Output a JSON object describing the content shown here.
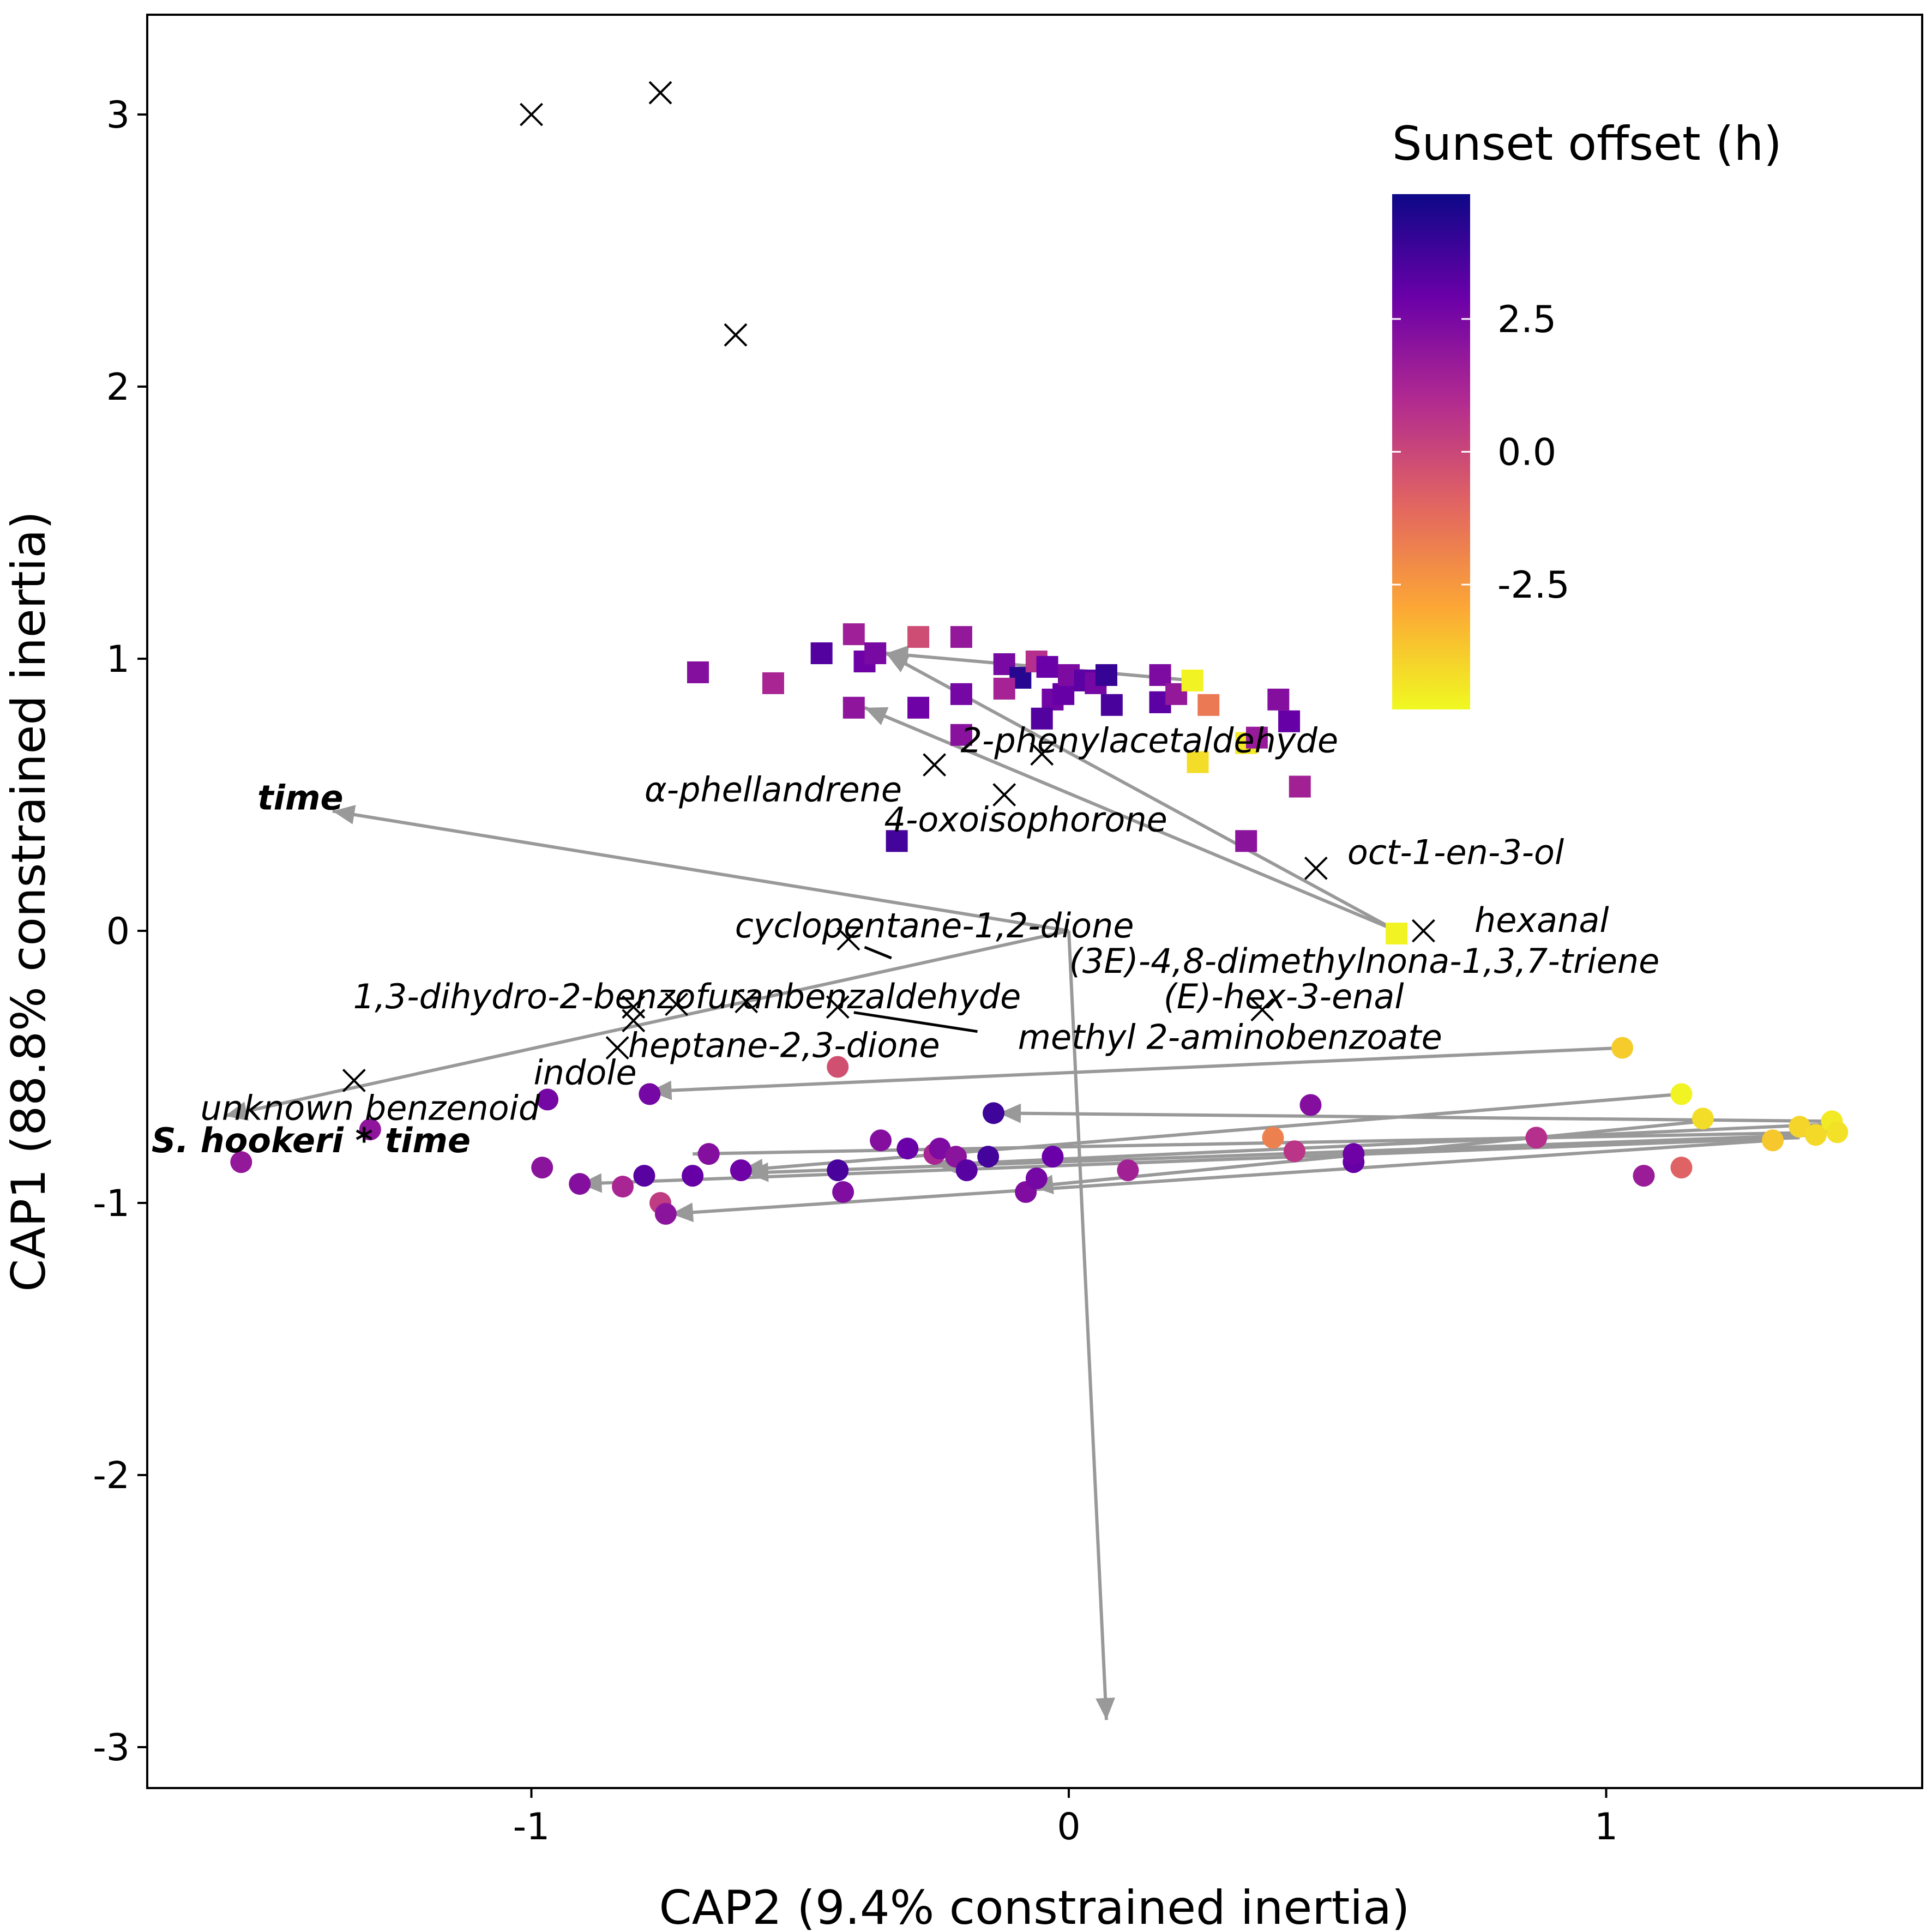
{
  "chart_data": {
    "type": "scatter",
    "title": "",
    "xlabel": "CAP2 (9.4% constrained inertia)",
    "ylabel": "CAP1 (88.8% constrained inertia)",
    "xlim": [
      -1.72,
      1.6
    ],
    "ylim": [
      -3.3,
      3.35
    ],
    "x_ticks": [
      -1,
      0,
      1
    ],
    "y_ticks": [
      -3,
      -2,
      -1,
      0,
      1,
      2,
      3
    ],
    "x_tick_labels": [
      "-1",
      "0",
      "1"
    ],
    "y_tick_labels": [
      "-3",
      "-2",
      "-1",
      "0",
      "1",
      "2",
      "3"
    ],
    "grid": false,
    "legend": {
      "title": "Sunset offset (h)",
      "position": "top-right",
      "min": -4.85,
      "max": 4.85,
      "ticks": [
        2.5,
        0.0,
        -2.5
      ],
      "tick_labels": [
        "2.5",
        "0.0",
        "-2.5"
      ],
      "colors": [
        "#f0f921",
        "#fca636",
        "#e16462",
        "#b12a90",
        "#6a00a8",
        "#0d0887"
      ]
    },
    "compound_markers": [
      [
        -1.0,
        3.0
      ],
      [
        -0.76,
        3.08
      ],
      [
        -0.62,
        2.19
      ],
      [
        -0.25,
        0.61
      ],
      [
        -0.05,
        0.65
      ],
      [
        -0.12,
        0.5
      ],
      [
        0.46,
        0.23
      ],
      [
        0.66,
        0.0
      ],
      [
        0.36,
        -0.29
      ],
      [
        -0.41,
        -0.03
      ],
      [
        -0.43,
        -0.28
      ],
      [
        -0.6,
        -0.26
      ],
      [
        -0.73,
        -0.27
      ],
      [
        -0.81,
        -0.28
      ],
      [
        -0.81,
        -0.33
      ],
      [
        -0.84,
        -0.43
      ],
      [
        -1.33,
        -0.55
      ]
    ],
    "compound_labels": [
      {
        "text": "2-phenylacetaldehyde",
        "x": 0.15,
        "y": 0.7
      },
      {
        "text": "α-phellandrene",
        "x": -0.55,
        "y": 0.52
      },
      {
        "text": "4-oxoisophorone",
        "x": -0.08,
        "y": 0.41
      },
      {
        "text": "oct-1-en-3-ol",
        "x": 0.72,
        "y": 0.29
      },
      {
        "text": "hexanal",
        "x": 0.88,
        "y": 0.04
      },
      {
        "text": "cyclopentane-1,2-dione",
        "x": -0.25,
        "y": 0.02
      },
      {
        "text": "(3E)-4,8-dimethylnona-1,3,7-triene",
        "x": 0.55,
        "y": -0.11
      },
      {
        "text": "1,3-dihydro-2-benzofuran",
        "x": -0.93,
        "y": -0.24
      },
      {
        "text": "benzaldehyde",
        "x": -0.31,
        "y": -0.24
      },
      {
        "text": "(E)-hex-3-enal",
        "x": 0.4,
        "y": -0.24
      },
      {
        "text": "methyl 2-aminobenzoate",
        "x": 0.3,
        "y": -0.39
      },
      {
        "text": "heptane-2,3-dione",
        "x": -0.53,
        "y": -0.42
      },
      {
        "text": "indole",
        "x": -0.9,
        "y": -0.52
      },
      {
        "text": "unknown benzenoid",
        "x": -1.3,
        "y": -0.65
      },
      {
        "text": "time",
        "x": -1.43,
        "y": 0.49,
        "bold": true
      },
      {
        "text": "S. hookeri * time",
        "x": -1.41,
        "y": -0.77,
        "bold": true
      }
    ],
    "leader_lines": [
      [
        [
          -0.38,
          -0.06
        ],
        [
          -0.33,
          -0.1
        ]
      ],
      [
        [
          -0.4,
          -0.3
        ],
        [
          -0.17,
          -0.37
        ]
      ]
    ],
    "series": [
      {
        "name": "square",
        "points": [
          [
            -0.69,
            0.95,
            2.2
          ],
          [
            -0.55,
            0.91,
            1.2
          ],
          [
            -0.46,
            1.02,
            3.4
          ],
          [
            -0.4,
            1.09,
            1.5
          ],
          [
            -0.38,
            0.99,
            2.8
          ],
          [
            -0.36,
            1.02,
            2.5
          ],
          [
            -0.28,
            1.08,
            -0.2
          ],
          [
            -0.2,
            1.08,
            1.8
          ],
          [
            -0.4,
            0.82,
            1.9
          ],
          [
            -0.28,
            0.82,
            2.8
          ],
          [
            -0.2,
            0.87,
            2.6
          ],
          [
            -0.2,
            0.72,
            2.1
          ],
          [
            -0.12,
            0.98,
            2.5
          ],
          [
            -0.09,
            0.93,
            4.3
          ],
          [
            -0.12,
            0.89,
            1.3
          ],
          [
            -0.06,
            0.99,
            0.8
          ],
          [
            -0.04,
            0.97,
            2.9
          ],
          [
            -0.03,
            0.85,
            2.7
          ],
          [
            -0.01,
            0.87,
            3.0
          ],
          [
            0.0,
            0.94,
            2.4
          ],
          [
            0.03,
            0.92,
            3.2
          ],
          [
            0.05,
            0.91,
            2.6
          ],
          [
            0.07,
            0.94,
            4.0
          ],
          [
            0.08,
            0.83,
            3.6
          ],
          [
            -0.05,
            0.78,
            3.4
          ],
          [
            0.17,
            0.84,
            2.4
          ],
          [
            0.17,
            0.84,
            3.2
          ],
          [
            0.17,
            0.94,
            2.4
          ],
          [
            0.2,
            0.87,
            1.8
          ],
          [
            0.23,
            0.92,
            -4.7
          ],
          [
            0.24,
            0.62,
            -4.2
          ],
          [
            0.26,
            0.83,
            -1.6
          ],
          [
            0.33,
            0.69,
            -4.5
          ],
          [
            0.35,
            0.71,
            1.7
          ],
          [
            0.39,
            0.85,
            2.2
          ],
          [
            0.41,
            0.77,
            3.0
          ],
          [
            0.43,
            0.53,
            1.4
          ],
          [
            0.33,
            0.33,
            2.0
          ],
          [
            -0.32,
            0.33,
            3.7
          ],
          [
            0.61,
            -0.01,
            -4.7
          ]
        ]
      },
      {
        "name": "circle",
        "points": [
          [
            -1.54,
            -0.85,
            1.8
          ],
          [
            -1.3,
            -0.73,
            1.9
          ],
          [
            -0.97,
            -0.62,
            2.6
          ],
          [
            -0.98,
            -0.87,
            2.0
          ],
          [
            -0.91,
            -0.93,
            2.2
          ],
          [
            -0.83,
            -0.94,
            1.2
          ],
          [
            -0.79,
            -0.9,
            3.3
          ],
          [
            -0.78,
            -0.6,
            2.6
          ],
          [
            -0.76,
            -1.0,
            0.4
          ],
          [
            -0.75,
            -1.04,
            2.0
          ],
          [
            -0.7,
            -0.9,
            3.0
          ],
          [
            -0.67,
            -0.82,
            2.2
          ],
          [
            -0.61,
            -0.88,
            2.8
          ],
          [
            -0.43,
            -0.5,
            -0.3
          ],
          [
            -0.43,
            -0.88,
            3.6
          ],
          [
            -0.42,
            -0.96,
            2.3
          ],
          [
            -0.35,
            -0.77,
            2.2
          ],
          [
            -0.3,
            -0.8,
            2.9
          ],
          [
            -0.25,
            -0.82,
            1.2
          ],
          [
            -0.24,
            -0.8,
            2.4
          ],
          [
            -0.21,
            -0.83,
            2.0
          ],
          [
            -0.19,
            -0.88,
            3.3
          ],
          [
            -0.15,
            -0.83,
            3.7
          ],
          [
            -0.14,
            -0.67,
            3.8
          ],
          [
            -0.08,
            -0.96,
            2.3
          ],
          [
            -0.06,
            -0.91,
            2.6
          ],
          [
            -0.03,
            -0.83,
            2.9
          ],
          [
            0.11,
            -0.88,
            1.4
          ],
          [
            0.38,
            -0.76,
            -1.8
          ],
          [
            0.42,
            -0.81,
            0.6
          ],
          [
            0.45,
            -0.64,
            2.2
          ],
          [
            0.53,
            -0.85,
            3.0
          ],
          [
            0.53,
            -0.82,
            2.8
          ],
          [
            0.87,
            -0.76,
            0.8
          ],
          [
            1.03,
            -0.43,
            -3.8
          ],
          [
            1.07,
            -0.9,
            1.6
          ],
          [
            1.14,
            -0.6,
            -4.7
          ],
          [
            1.14,
            -0.87,
            -0.9
          ],
          [
            1.18,
            -0.69,
            -4.2
          ],
          [
            1.31,
            -0.77,
            -3.7
          ],
          [
            1.36,
            -0.72,
            -4.0
          ],
          [
            1.39,
            -0.75,
            -4.1
          ],
          [
            1.42,
            -0.7,
            -4.5
          ],
          [
            1.43,
            -0.74,
            -4.3
          ]
        ]
      }
    ],
    "arrows": [
      [
        [
          0.0,
          0.0
        ],
        [
          -1.37,
          0.44
        ]
      ],
      [
        [
          0.0,
          0.0
        ],
        [
          -1.57,
          -0.68
        ]
      ],
      [
        [
          0.0,
          0.0
        ],
        [
          0.07,
          -2.9
        ]
      ],
      [
        [
          0.61,
          0.0
        ],
        [
          -0.34,
          1.02
        ]
      ],
      [
        [
          0.61,
          0.0
        ],
        [
          -0.38,
          0.82
        ]
      ],
      [
        [
          0.23,
          0.92
        ],
        [
          -0.34,
          1.02
        ]
      ],
      [
        [
          1.03,
          -0.43
        ],
        [
          -0.78,
          -0.59
        ]
      ],
      [
        [
          1.14,
          -0.6
        ],
        [
          -0.61,
          -0.88
        ]
      ],
      [
        [
          1.43,
          -0.7
        ],
        [
          -0.13,
          -0.67
        ]
      ],
      [
        [
          1.42,
          -0.74
        ],
        [
          -0.7,
          -0.82
        ]
      ],
      [
        [
          1.39,
          -0.75
        ],
        [
          -0.6,
          -0.89
        ]
      ],
      [
        [
          1.36,
          -0.76
        ],
        [
          -0.91,
          -0.93
        ]
      ],
      [
        [
          1.31,
          -0.77
        ],
        [
          -0.74,
          -1.04
        ]
      ],
      [
        [
          1.18,
          -0.7
        ],
        [
          -0.07,
          -0.94
        ]
      ],
      [
        [
          1.42,
          -0.71
        ],
        [
          -0.25,
          -0.86
        ]
      ]
    ]
  }
}
